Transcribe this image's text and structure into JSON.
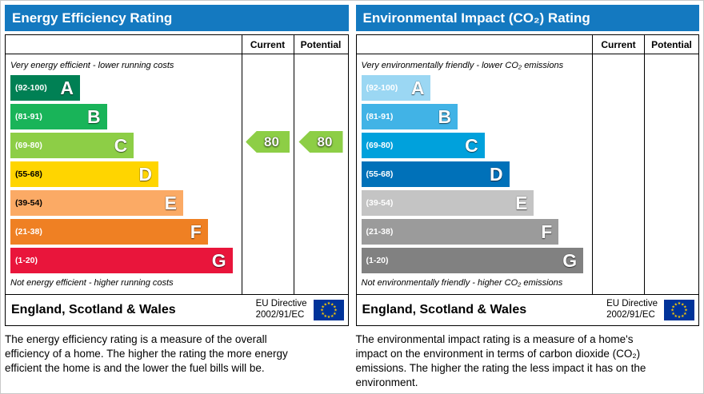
{
  "ui": {
    "header_bg": "#1479c0",
    "header_text": "#ffffff",
    "border_color": "#000000",
    "eu_flag_bg": "#003399",
    "eu_flag_stars": "#ffcc00"
  },
  "chart_data": [
    {
      "type": "bar",
      "id": "energy-efficiency",
      "title": "Energy Efficiency Rating",
      "columns": {
        "current": "Current",
        "potential": "Potential"
      },
      "top_caption": "Very energy efficient - lower running costs",
      "bottom_caption": "Not energy efficient - higher running costs",
      "categories": [
        "A",
        "B",
        "C",
        "D",
        "E",
        "F",
        "G"
      ],
      "bands": [
        {
          "letter": "A",
          "range_label": "(92-100)",
          "range": [
            92,
            100
          ],
          "color": "#008054",
          "width_pct": 31,
          "range_text_color": "#ffffff"
        },
        {
          "letter": "B",
          "range_label": "(81-91)",
          "range": [
            81,
            91
          ],
          "color": "#19b459",
          "width_pct": 43,
          "range_text_color": "#ffffff"
        },
        {
          "letter": "C",
          "range_label": "(69-80)",
          "range": [
            69,
            80
          ],
          "color": "#8dce46",
          "width_pct": 55,
          "range_text_color": "#ffffff"
        },
        {
          "letter": "D",
          "range_label": "(55-68)",
          "range": [
            55,
            68
          ],
          "color": "#ffd500",
          "width_pct": 66,
          "range_text_color": "#000000"
        },
        {
          "letter": "E",
          "range_label": "(39-54)",
          "range": [
            39,
            54
          ],
          "color": "#fbaa65",
          "width_pct": 77,
          "range_text_color": "#000000"
        },
        {
          "letter": "F",
          "range_label": "(21-38)",
          "range": [
            21,
            38
          ],
          "color": "#ef8023",
          "width_pct": 88,
          "range_text_color": "#ffffff"
        },
        {
          "letter": "G",
          "range_label": "(1-20)",
          "range": [
            1,
            20
          ],
          "color": "#e9153b",
          "width_pct": 99,
          "range_text_color": "#ffffff"
        }
      ],
      "current": {
        "value": 80,
        "color": "#8dce46",
        "band_index": 2
      },
      "potential": {
        "value": 80,
        "color": "#8dce46",
        "band_index": 2
      },
      "footer": {
        "region": "England, Scotland & Wales",
        "directive_line1": "EU Directive",
        "directive_line2": "2002/91/EC"
      },
      "description": "The energy efficiency rating is a measure of the overall efficiency of a home. The higher the rating the more energy efficient the home is and the lower the fuel bills will be."
    },
    {
      "type": "bar",
      "id": "environmental-impact-co2",
      "title": "Environmental Impact (CO₂) Rating",
      "columns": {
        "current": "Current",
        "potential": "Potential"
      },
      "top_caption": "Very environmentally friendly - lower CO₂ emissions",
      "bottom_caption": "Not environmentally friendly - higher CO₂ emissions",
      "categories": [
        "A",
        "B",
        "C",
        "D",
        "E",
        "F",
        "G"
      ],
      "bands": [
        {
          "letter": "A",
          "range_label": "(92-100)",
          "range": [
            92,
            100
          ],
          "color": "#9bd7f3",
          "width_pct": 31,
          "range_text_color": "#ffffff"
        },
        {
          "letter": "B",
          "range_label": "(81-91)",
          "range": [
            81,
            91
          ],
          "color": "#41b3e6",
          "width_pct": 43,
          "range_text_color": "#ffffff"
        },
        {
          "letter": "C",
          "range_label": "(69-80)",
          "range": [
            69,
            80
          ],
          "color": "#00a1dc",
          "width_pct": 55,
          "range_text_color": "#ffffff"
        },
        {
          "letter": "D",
          "range_label": "(55-68)",
          "range": [
            55,
            68
          ],
          "color": "#0071b9",
          "width_pct": 66,
          "range_text_color": "#ffffff"
        },
        {
          "letter": "E",
          "range_label": "(39-54)",
          "range": [
            39,
            54
          ],
          "color": "#c4c4c4",
          "width_pct": 77,
          "range_text_color": "#ffffff"
        },
        {
          "letter": "F",
          "range_label": "(21-38)",
          "range": [
            21,
            38
          ],
          "color": "#9b9b9b",
          "width_pct": 88,
          "range_text_color": "#ffffff"
        },
        {
          "letter": "G",
          "range_label": "(1-20)",
          "range": [
            1,
            20
          ],
          "color": "#818181",
          "width_pct": 99,
          "range_text_color": "#ffffff"
        }
      ],
      "current": null,
      "potential": null,
      "footer": {
        "region": "England, Scotland & Wales",
        "directive_line1": "EU Directive",
        "directive_line2": "2002/91/EC"
      },
      "description": "The environmental impact rating is a measure of a home's impact on the environment in terms of carbon dioxide (CO₂) emissions. The higher the rating the less impact it has on the environment."
    }
  ]
}
